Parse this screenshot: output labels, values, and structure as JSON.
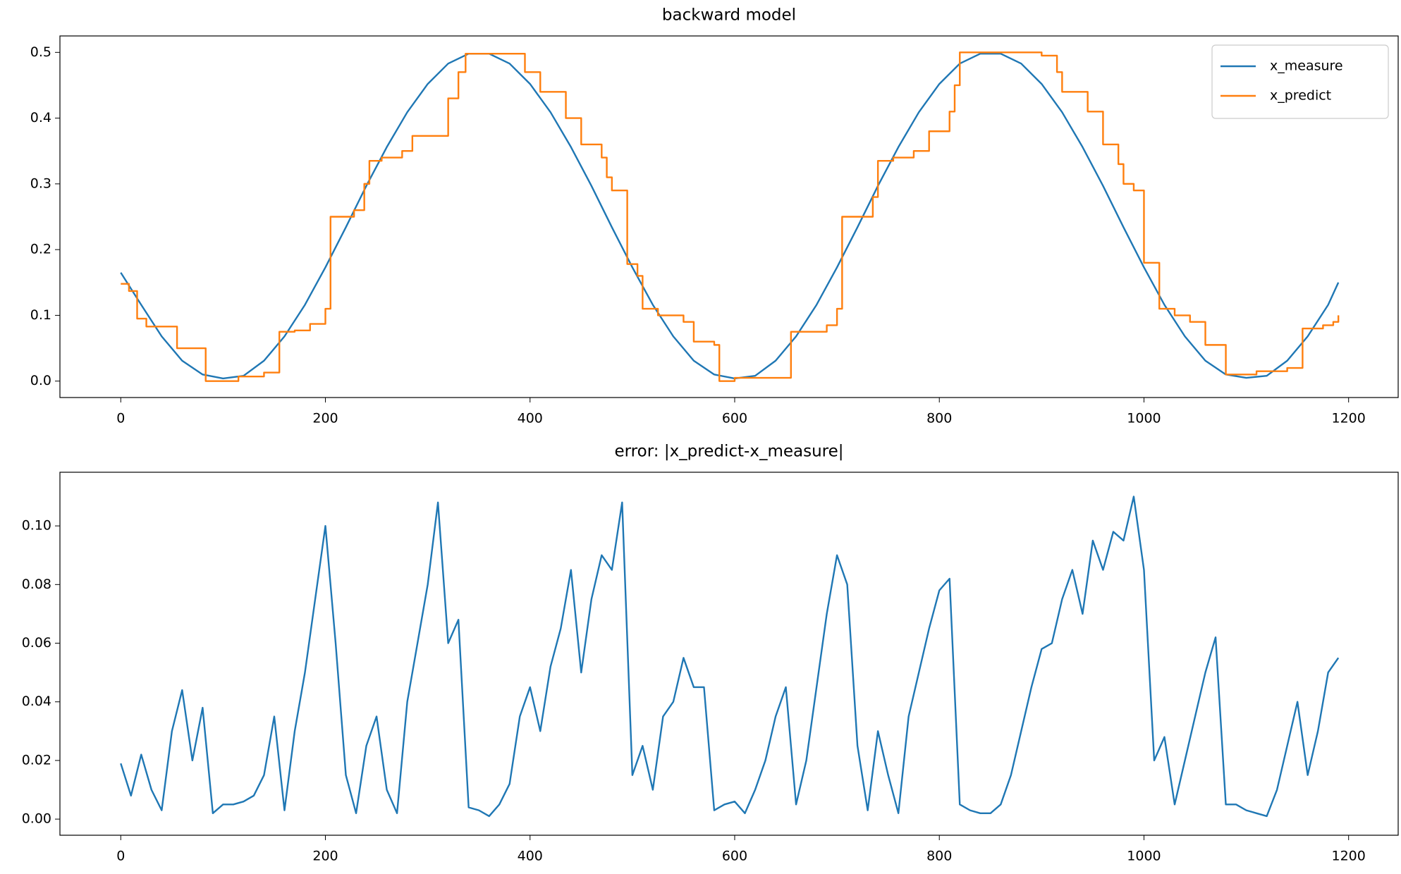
{
  "chart_data": [
    {
      "type": "line",
      "title": "backward model",
      "xlim": [
        -59.45,
        1248.45
      ],
      "xticks": [
        0,
        200,
        400,
        600,
        800,
        1000,
        1200
      ],
      "ylim": [
        -0.025,
        0.525
      ],
      "yticks": [
        {
          "value": 0,
          "label": "0.0"
        },
        0.1,
        0.2,
        0.3,
        0.4,
        0.5
      ],
      "legend": "upper right",
      "series": [
        {
          "name": "x_measure",
          "color": "#1f77b4",
          "x": [
            0,
            20,
            40,
            60,
            80,
            100,
            120,
            140,
            160,
            180,
            200,
            220,
            240,
            260,
            280,
            300,
            320,
            340,
            360,
            380,
            400,
            420,
            440,
            460,
            480,
            500,
            520,
            540,
            560,
            580,
            600,
            620,
            640,
            660,
            680,
            700,
            720,
            740,
            760,
            780,
            800,
            820,
            840,
            860,
            880,
            900,
            920,
            940,
            960,
            980,
            1000,
            1020,
            1040,
            1060,
            1080,
            1100,
            1120,
            1140,
            1160,
            1180,
            1190
          ],
          "values": [
            0.165,
            0.116,
            0.068,
            0.031,
            0.01,
            0.004,
            0.008,
            0.031,
            0.068,
            0.116,
            0.173,
            0.234,
            0.297,
            0.356,
            0.409,
            0.452,
            0.483,
            0.498,
            0.498,
            0.483,
            0.452,
            0.409,
            0.356,
            0.297,
            0.234,
            0.173,
            0.116,
            0.068,
            0.031,
            0.01,
            0.004,
            0.008,
            0.031,
            0.068,
            0.116,
            0.173,
            0.234,
            0.297,
            0.356,
            0.409,
            0.452,
            0.483,
            0.498,
            0.498,
            0.483,
            0.452,
            0.409,
            0.356,
            0.297,
            0.234,
            0.173,
            0.116,
            0.068,
            0.031,
            0.01,
            0.005,
            0.008,
            0.031,
            0.068,
            0.116,
            0.15
          ]
        },
        {
          "name": "x_predict",
          "color": "#ff7f0e",
          "step": "post",
          "x": [
            0,
            8,
            16,
            25,
            55,
            83,
            115,
            140,
            155,
            170,
            185,
            200,
            205,
            228,
            238,
            243,
            255,
            275,
            285,
            320,
            330,
            337,
            395,
            410,
            435,
            450,
            470,
            475,
            480,
            495,
            505,
            510,
            525,
            550,
            560,
            580,
            585,
            600,
            655,
            690,
            700,
            705,
            735,
            740,
            755,
            775,
            790,
            810,
            815,
            820,
            900,
            915,
            920,
            945,
            960,
            975,
            980,
            990,
            1000,
            1015,
            1030,
            1045,
            1060,
            1080,
            1110,
            1140,
            1155,
            1175,
            1185,
            1190
          ],
          "values": [
            0.148,
            0.137,
            0.095,
            0.083,
            0.05,
            0.0,
            0.007,
            0.013,
            0.075,
            0.077,
            0.087,
            0.11,
            0.25,
            0.26,
            0.3,
            0.335,
            0.34,
            0.35,
            0.373,
            0.43,
            0.47,
            0.498,
            0.47,
            0.44,
            0.4,
            0.36,
            0.34,
            0.31,
            0.29,
            0.178,
            0.16,
            0.11,
            0.1,
            0.09,
            0.06,
            0.055,
            0.0,
            0.005,
            0.075,
            0.085,
            0.11,
            0.25,
            0.28,
            0.335,
            0.34,
            0.35,
            0.38,
            0.41,
            0.45,
            0.5,
            0.495,
            0.47,
            0.44,
            0.41,
            0.36,
            0.33,
            0.3,
            0.29,
            0.18,
            0.11,
            0.1,
            0.09,
            0.055,
            0.01,
            0.015,
            0.02,
            0.08,
            0.085,
            0.09,
            0.1
          ]
        }
      ]
    },
    {
      "type": "line",
      "title": "error: |x_predict-x_measure|",
      "xlim": [
        -59.45,
        1248.45
      ],
      "xticks": [
        0,
        200,
        400,
        600,
        800,
        1000,
        1200
      ],
      "ylim": [
        -0.0055,
        0.1183
      ],
      "yticks": [
        {
          "value": 0,
          "label": "0.00"
        },
        0.02,
        0.04,
        0.06,
        0.08,
        {
          "value": 0.1,
          "label": "0.10"
        }
      ],
      "series": [
        {
          "color": "#1f77b4",
          "x": [
            0,
            10,
            20,
            30,
            40,
            50,
            60,
            70,
            80,
            90,
            100,
            110,
            120,
            130,
            140,
            150,
            160,
            170,
            180,
            190,
            200,
            210,
            220,
            230,
            240,
            250,
            260,
            270,
            280,
            290,
            300,
            310,
            320,
            330,
            340,
            350,
            360,
            370,
            380,
            390,
            400,
            410,
            420,
            430,
            440,
            450,
            460,
            470,
            480,
            490,
            500,
            510,
            520,
            530,
            540,
            550,
            560,
            570,
            580,
            590,
            600,
            610,
            620,
            630,
            640,
            650,
            660,
            670,
            680,
            690,
            700,
            710,
            720,
            730,
            740,
            750,
            760,
            770,
            780,
            790,
            800,
            810,
            820,
            830,
            840,
            850,
            860,
            870,
            880,
            890,
            900,
            910,
            920,
            930,
            940,
            950,
            960,
            970,
            980,
            990,
            1000,
            1010,
            1020,
            1030,
            1040,
            1050,
            1060,
            1070,
            1080,
            1090,
            1100,
            1110,
            1120,
            1130,
            1140,
            1150,
            1160,
            1170,
            1180,
            1190
          ],
          "values": [
            0.019,
            0.008,
            0.022,
            0.01,
            0.003,
            0.03,
            0.044,
            0.02,
            0.038,
            0.002,
            0.005,
            0.005,
            0.006,
            0.008,
            0.015,
            0.035,
            0.003,
            0.03,
            0.05,
            0.075,
            0.1,
            0.06,
            0.015,
            0.002,
            0.025,
            0.035,
            0.01,
            0.002,
            0.04,
            0.06,
            0.08,
            0.108,
            0.06,
            0.068,
            0.004,
            0.003,
            0.001,
            0.005,
            0.012,
            0.035,
            0.045,
            0.03,
            0.052,
            0.065,
            0.085,
            0.05,
            0.075,
            0.09,
            0.085,
            0.108,
            0.015,
            0.025,
            0.01,
            0.035,
            0.04,
            0.055,
            0.045,
            0.045,
            0.003,
            0.005,
            0.006,
            0.002,
            0.01,
            0.02,
            0.035,
            0.045,
            0.005,
            0.02,
            0.045,
            0.07,
            0.09,
            0.08,
            0.025,
            0.003,
            0.03,
            0.015,
            0.002,
            0.035,
            0.05,
            0.065,
            0.078,
            0.082,
            0.005,
            0.003,
            0.002,
            0.002,
            0.005,
            0.015,
            0.03,
            0.045,
            0.058,
            0.06,
            0.075,
            0.085,
            0.07,
            0.095,
            0.085,
            0.098,
            0.095,
            0.11,
            0.085,
            0.02,
            0.028,
            0.005,
            0.02,
            0.035,
            0.05,
            0.062,
            0.005,
            0.005,
            0.003,
            0.002,
            0.001,
            0.01,
            0.025,
            0.04,
            0.015,
            0.03,
            0.05,
            0.055
          ]
        }
      ]
    }
  ]
}
